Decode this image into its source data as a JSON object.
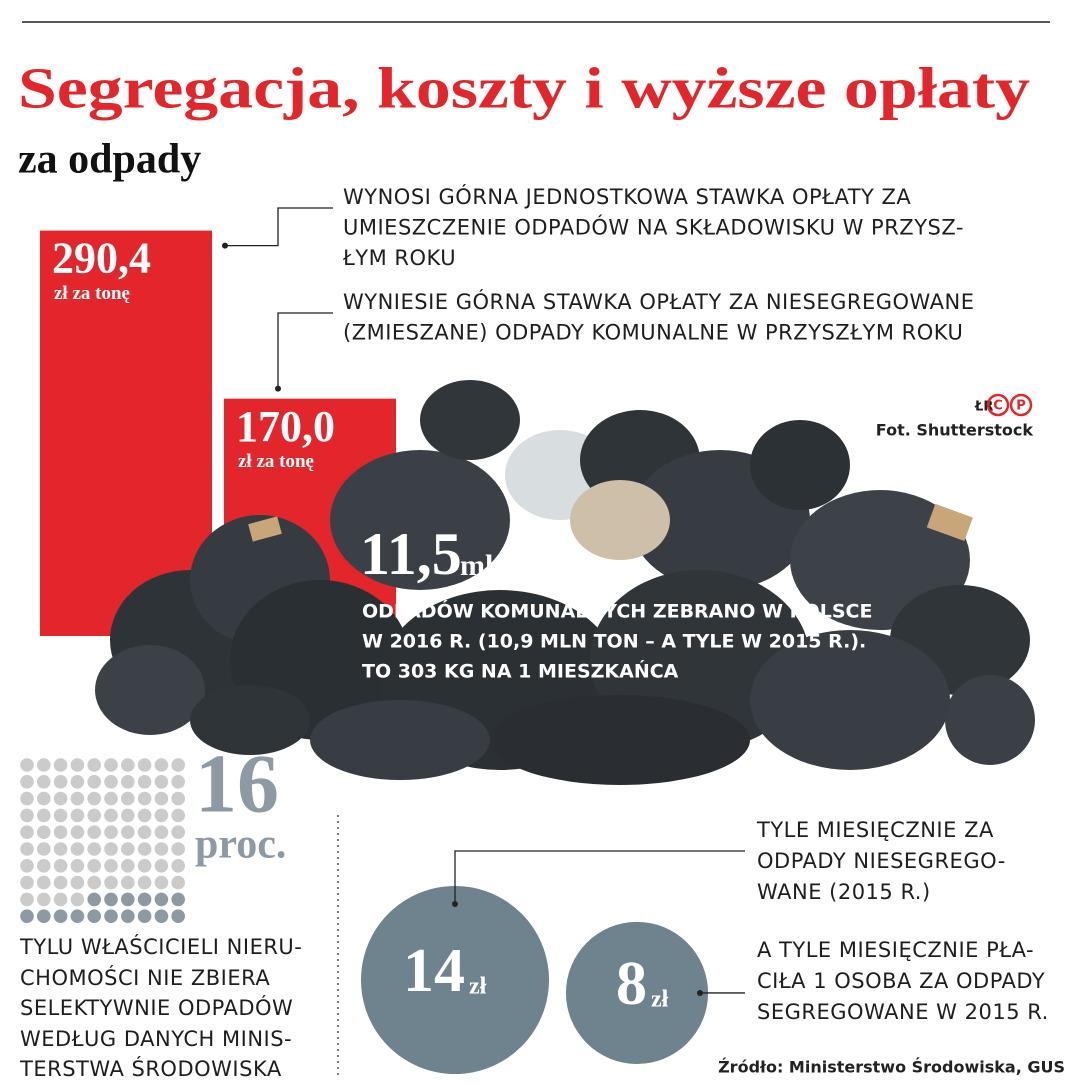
{
  "header": {
    "title": "Segregacja, koszty i wyższe opłaty",
    "subtitle": "za odpady"
  },
  "bars": [
    {
      "value": 290.4,
      "label": "290,4",
      "unit": "zł za tonę",
      "note": [
        "WYNOSI GÓRNA JEDNOSTKOWA STAWKA OPŁATY ZA",
        "UMIESZCZENIE ODPADÓW NA SKŁADOWISKU W PRZYSZ-",
        "ŁYM ROKU"
      ]
    },
    {
      "value": 170.0,
      "label": "170,0",
      "unit": "zł za tonę",
      "note": [
        "WYNIESIE GÓRNA STAWKA OPŁATY ZA NIESEGREGOWANE",
        "(ZMIESZANE) ODPADY KOMUNALNE W PRZYSZŁYM ROKU"
      ]
    }
  ],
  "credit": {
    "agency": "ŁR",
    "logo": [
      "C",
      "P"
    ],
    "photo": "Fot. Shutterstock"
  },
  "highlight": {
    "label": "11,5",
    "unit": "mln ton",
    "text": [
      "ODPADÓW KOMUNALNYCH ZEBRANO W POLSCE",
      "W 2016 R. (10,9 MLN TON – A TYLE W 2015 R.).",
      "TO 303 KG NA 1 MIESZKAŃCA"
    ]
  },
  "waffle": {
    "value": 16,
    "label": "16",
    "unit": "proc.",
    "text": [
      "TYLU WŁAŚCICIELI NIERU-",
      "CHOMOŚCI NIE ZBIERA",
      "SELEKTYWNIE ODPADÓW",
      "WEDŁUG DANYCH MINIS-",
      "TERSTWA ŚRODOWISKA"
    ]
  },
  "circles": [
    {
      "value": 14,
      "label": "14",
      "unit": "zł",
      "note": [
        "TYLE MIESIĘCZNIE ZA",
        "ODPADY NIESEGREGO-",
        "WANE (2015 R.)"
      ]
    },
    {
      "value": 8,
      "label": "8",
      "unit": "zł",
      "note": [
        "A TYLE MIESIĘCZNIE PŁA-",
        "CIŁA 1 OSOBA ZA ODPADY",
        "SEGREGOWANE W 2015 R."
      ]
    }
  ],
  "source": "Źródło: Ministerstwo Środowiska, GUS"
}
